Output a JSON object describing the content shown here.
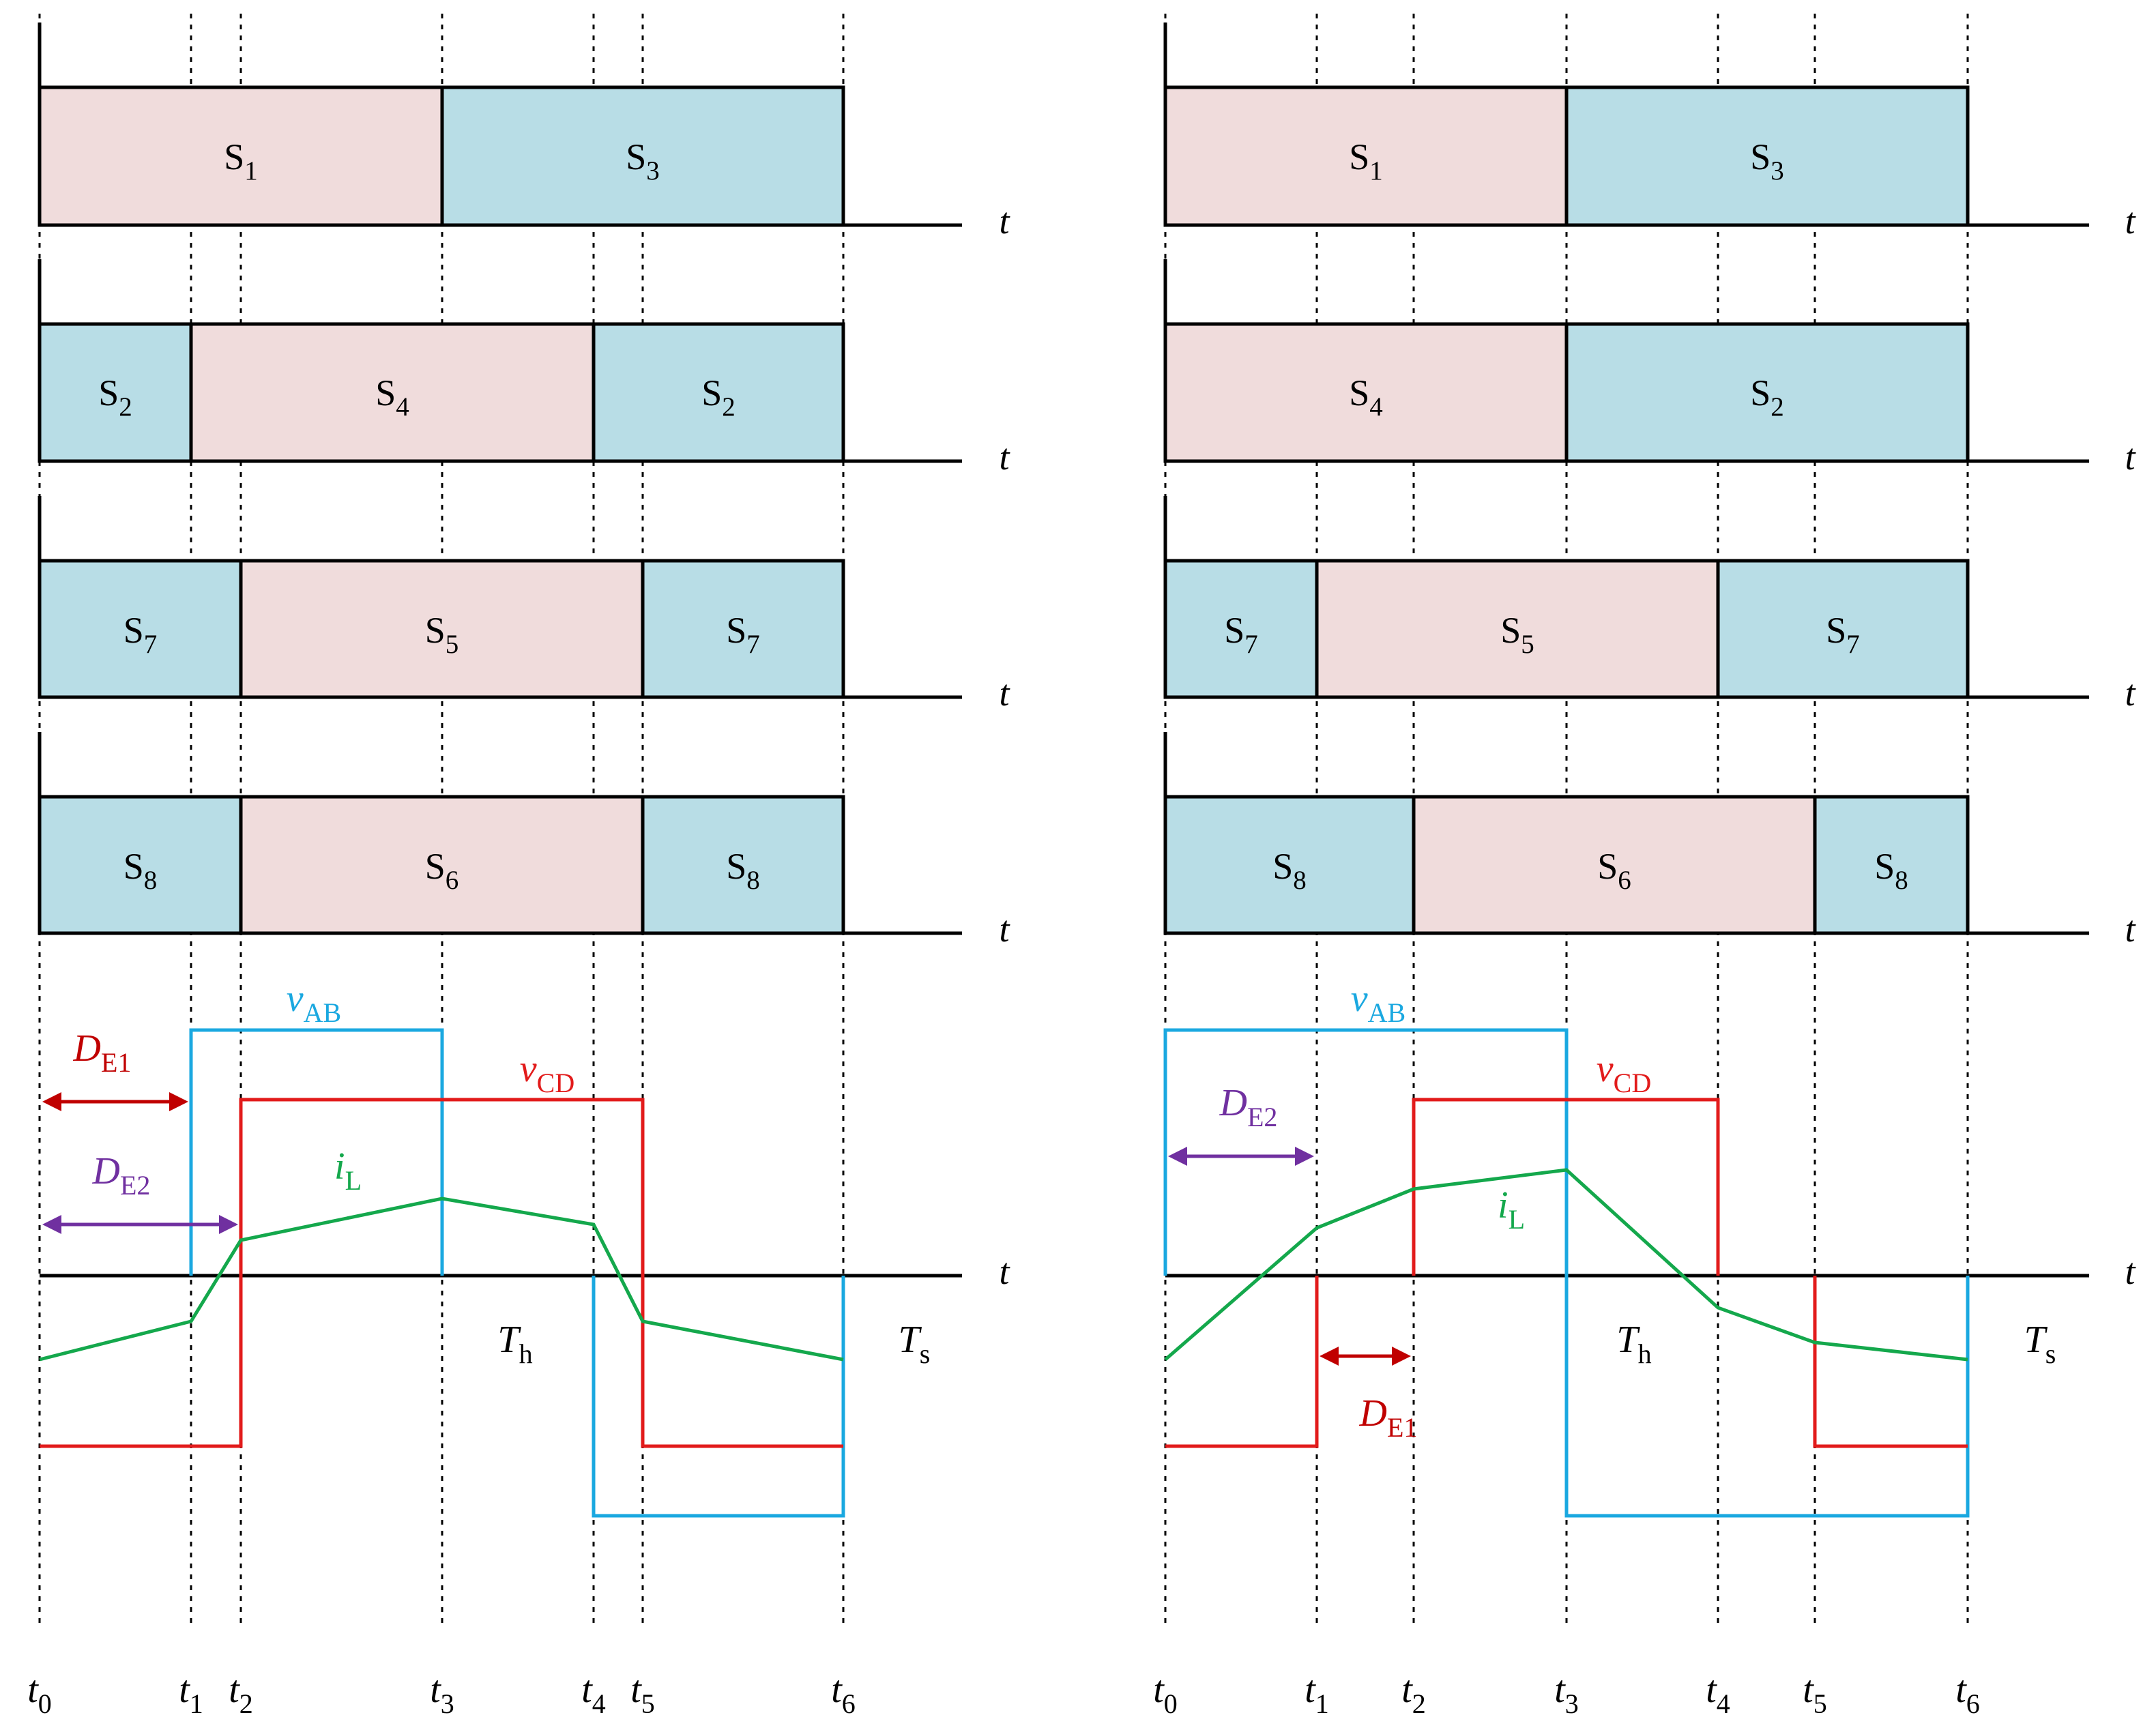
{
  "figure": {
    "axis_label": "t",
    "colors": {
      "pink": "#f0dcdc",
      "blue": "#b8dde6",
      "vab": "#1aa8e0",
      "vcd": "#e21b1b",
      "il": "#14a84c",
      "de2": "#7030a0",
      "de1": "#c00000"
    },
    "time_labels": [
      "t",
      "0",
      "1",
      "2",
      "3",
      "4",
      "5",
      "6"
    ],
    "waveform_labels": {
      "vab": "v",
      "vab_sub": "AB",
      "vcd": "v",
      "vcd_sub": "CD",
      "il": "i",
      "il_sub": "L",
      "th": "T",
      "th_sub": "h",
      "ts": "T",
      "ts_sub": "s",
      "de1": "D",
      "de1_sub": "E1",
      "de2": "D",
      "de2_sub": "E2",
      "t": "T",
      "t_sub": "h"
    },
    "panels": [
      {
        "name": "left",
        "rows": [
          [
            {
              "label": "S",
              "sub": "1",
              "color": "pink"
            },
            {
              "label": "S",
              "sub": "3",
              "color": "blue"
            }
          ],
          [
            {
              "label": "S",
              "sub": "2",
              "color": "blue"
            },
            {
              "label": "S",
              "sub": "4",
              "color": "pink"
            },
            {
              "label": "S",
              "sub": "2",
              "color": "blue"
            }
          ],
          [
            {
              "label": "S",
              "sub": "7",
              "color": "blue"
            },
            {
              "label": "S",
              "sub": "5",
              "color": "pink"
            },
            {
              "label": "S",
              "sub": "7",
              "color": "blue"
            }
          ],
          [
            {
              "label": "S",
              "sub": "8",
              "color": "blue"
            },
            {
              "label": "S",
              "sub": "6",
              "color": "pink"
            },
            {
              "label": "S",
              "sub": "8",
              "color": "blue"
            }
          ]
        ]
      },
      {
        "name": "right",
        "rows": [
          [
            {
              "label": "S",
              "sub": "1",
              "color": "pink"
            },
            {
              "label": "S",
              "sub": "3",
              "color": "blue"
            }
          ],
          [
            {
              "label": "S",
              "sub": "4",
              "color": "pink"
            },
            {
              "label": "S",
              "sub": "2",
              "color": "blue"
            }
          ],
          [
            {
              "label": "S",
              "sub": "7",
              "color": "blue"
            },
            {
              "label": "S",
              "sub": "5",
              "color": "pink"
            },
            {
              "label": "S",
              "sub": "7",
              "color": "blue"
            }
          ],
          [
            {
              "label": "S",
              "sub": "8",
              "color": "blue"
            },
            {
              "label": "S",
              "sub": "6",
              "color": "pink"
            },
            {
              "label": "S",
              "sub": "8",
              "color": "blue"
            }
          ]
        ]
      }
    ]
  }
}
